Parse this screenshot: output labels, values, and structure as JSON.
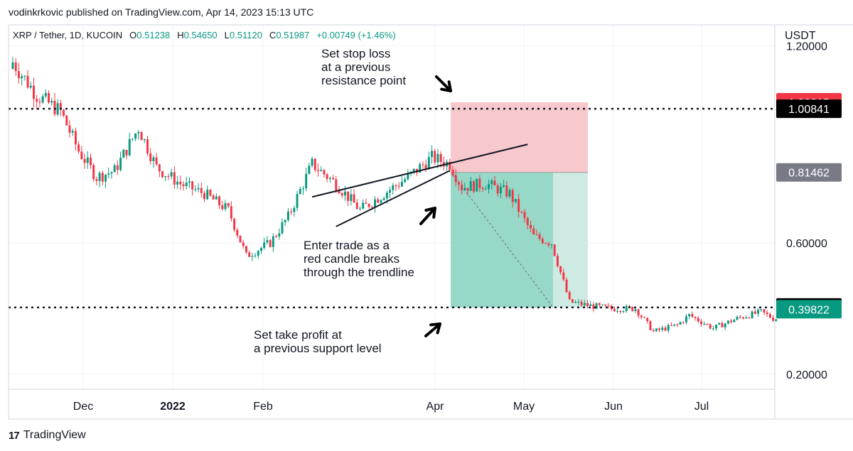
{
  "header": {
    "text": "vodinkrkovic published on TradingView.com, Apr 14, 2023 15:13 UTC"
  },
  "legend": {
    "symbol": "XRP / Tether, 1D, KUCOIN",
    "o_label": "O",
    "o": "0.51238",
    "h_label": "H",
    "h": "0.54650",
    "l_label": "L",
    "l": "0.51120",
    "c_label": "C",
    "c": "0.51987",
    "change": "+0.00749 (+1.46%)"
  },
  "footer": {
    "logo": "17",
    "brand": "TradingView"
  },
  "annotations": {
    "stop_loss": [
      "Set stop loss",
      "at a previous",
      "resistance point"
    ],
    "enter": [
      "Enter trade as a",
      "red candle breaks",
      "through the trendline"
    ],
    "take_profit": [
      "Set take profit at",
      "a previous support level"
    ]
  },
  "chart_data": {
    "type": "candlestick",
    "symbol": "XRP / Tether",
    "interval": "1D",
    "exchange": "KUCOIN",
    "y_unit": "USDT",
    "yticks": [
      {
        "value": 0.2,
        "label": "0.20000"
      },
      {
        "value": 0.6,
        "label": "0.60000"
      },
      {
        "value": 1.2,
        "label": "1.20000"
      }
    ],
    "xticks": [
      {
        "label": "Dec",
        "bold": false
      },
      {
        "label": "2022",
        "bold": true
      },
      {
        "label": "Feb",
        "bold": false
      },
      {
        "label": "Apr",
        "bold": false
      },
      {
        "label": "May",
        "bold": false
      },
      {
        "label": "Jun",
        "bold": false
      },
      {
        "label": "Jul",
        "bold": false
      }
    ],
    "price_labels": [
      {
        "value": 1.02815,
        "text": "1.02815",
        "color": "#f23645"
      },
      {
        "value": 1.00841,
        "text": "1.00841",
        "color": "#000000"
      },
      {
        "value": 0.81462,
        "text": "0.81462",
        "color": "#787b86"
      },
      {
        "value": 0.40346,
        "text": "0.40346",
        "color": "#000000"
      },
      {
        "value": 0.39822,
        "text": "0.39822",
        "color": "#089981"
      }
    ],
    "horizontal_levels": [
      1.00841,
      0.40346
    ],
    "short_position": {
      "entry": 0.81462,
      "stop": 1.02815,
      "target": 0.40346,
      "stop_color": "#f7c9cd",
      "target_color": "#98d8c8",
      "target_color_light": "#cdebe3"
    },
    "colors": {
      "up": "#089981",
      "down": "#f23645",
      "grid": "#f0f3fa"
    },
    "candles": {
      "start_price": 1.13,
      "seed": 7,
      "anchors": [
        [
          0,
          1.15
        ],
        [
          8,
          1.05
        ],
        [
          16,
          1.0
        ],
        [
          22,
          0.88
        ],
        [
          28,
          0.8
        ],
        [
          34,
          0.82
        ],
        [
          42,
          0.95
        ],
        [
          48,
          0.83
        ],
        [
          56,
          0.78
        ],
        [
          64,
          0.75
        ],
        [
          72,
          0.7
        ],
        [
          78,
          0.56
        ],
        [
          86,
          0.6
        ],
        [
          92,
          0.68
        ],
        [
          100,
          0.84
        ],
        [
          108,
          0.78
        ],
        [
          116,
          0.7
        ],
        [
          124,
          0.75
        ],
        [
          132,
          0.8
        ],
        [
          140,
          0.86
        ],
        [
          146,
          0.84
        ],
        [
          150,
          0.77
        ],
        [
          158,
          0.78
        ],
        [
          166,
          0.75
        ],
        [
          174,
          0.62
        ],
        [
          180,
          0.6
        ],
        [
          186,
          0.42
        ],
        [
          192,
          0.41
        ],
        [
          200,
          0.4
        ],
        [
          208,
          0.4
        ],
        [
          214,
          0.33
        ],
        [
          222,
          0.35
        ],
        [
          226,
          0.38
        ],
        [
          234,
          0.34
        ],
        [
          242,
          0.37
        ],
        [
          250,
          0.39
        ],
        [
          254,
          0.37
        ]
      ]
    },
    "trendlines": [
      {
        "from": [
          100,
          0.74
        ],
        "to": [
          172,
          0.9
        ]
      },
      {
        "from": [
          108,
          0.65
        ],
        "to": [
          146,
          0.82
        ]
      }
    ]
  }
}
